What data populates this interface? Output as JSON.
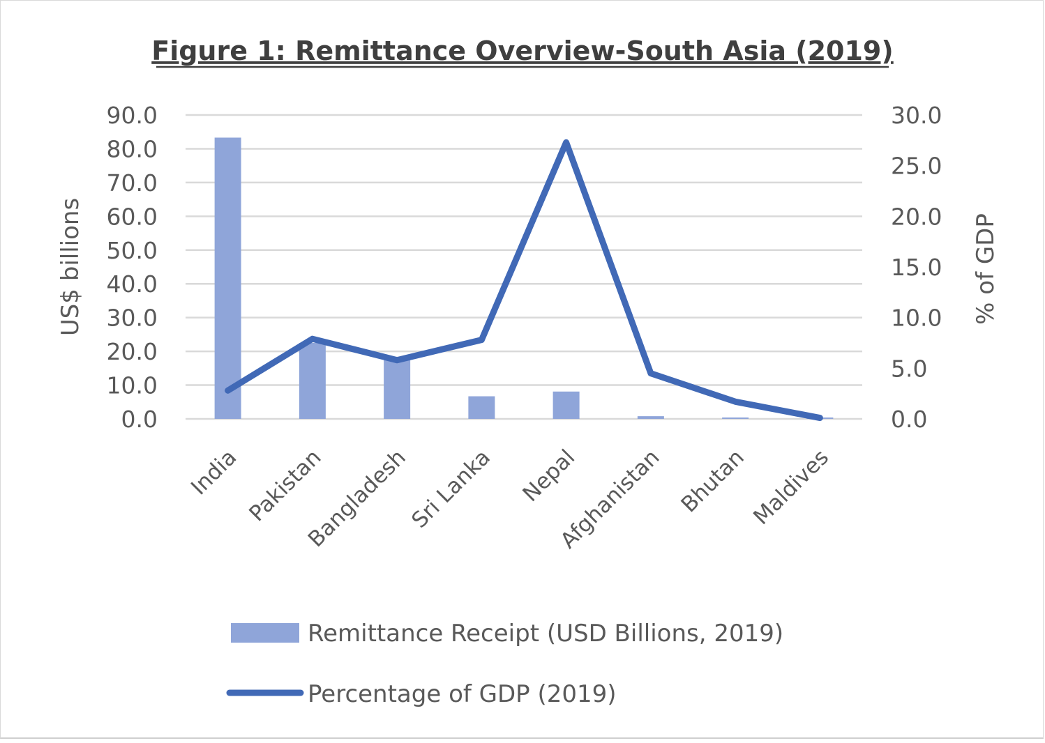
{
  "chart_data": {
    "type": "bar",
    "title": "Figure 1: Remittance Overview-South Asia (2019)",
    "categories": [
      "India",
      "Pakistan",
      "Bangladesh",
      "Sri Lanka",
      "Nepal",
      "Afghanistan",
      "Bhutan",
      "Maldives"
    ],
    "series": [
      {
        "name": "Remittance Receipt (USD Billions, 2019)",
        "type": "bar",
        "axis": "left",
        "color": "#8FA5D9",
        "values": [
          83.3,
          22.5,
          18.4,
          6.7,
          8.1,
          0.8,
          0.1,
          0.1
        ]
      },
      {
        "name": "Percentage of GDP (2019)",
        "type": "line",
        "axis": "right",
        "color": "#4169B6",
        "values": [
          2.8,
          7.9,
          5.8,
          7.8,
          27.3,
          4.5,
          1.7,
          0.1
        ]
      }
    ],
    "ylabel": "US$ billions",
    "y2label": "% of GDP",
    "ylim": [
      0,
      90
    ],
    "y2lim": [
      0,
      30
    ],
    "yticks": [
      "0.0",
      "10.0",
      "20.0",
      "30.0",
      "40.0",
      "50.0",
      "60.0",
      "70.0",
      "80.0",
      "90.0"
    ],
    "y2ticks": [
      "0.0",
      "5.0",
      "10.0",
      "15.0",
      "20.0",
      "25.0",
      "30.0"
    ],
    "grid": true,
    "legend_position": "bottom"
  }
}
